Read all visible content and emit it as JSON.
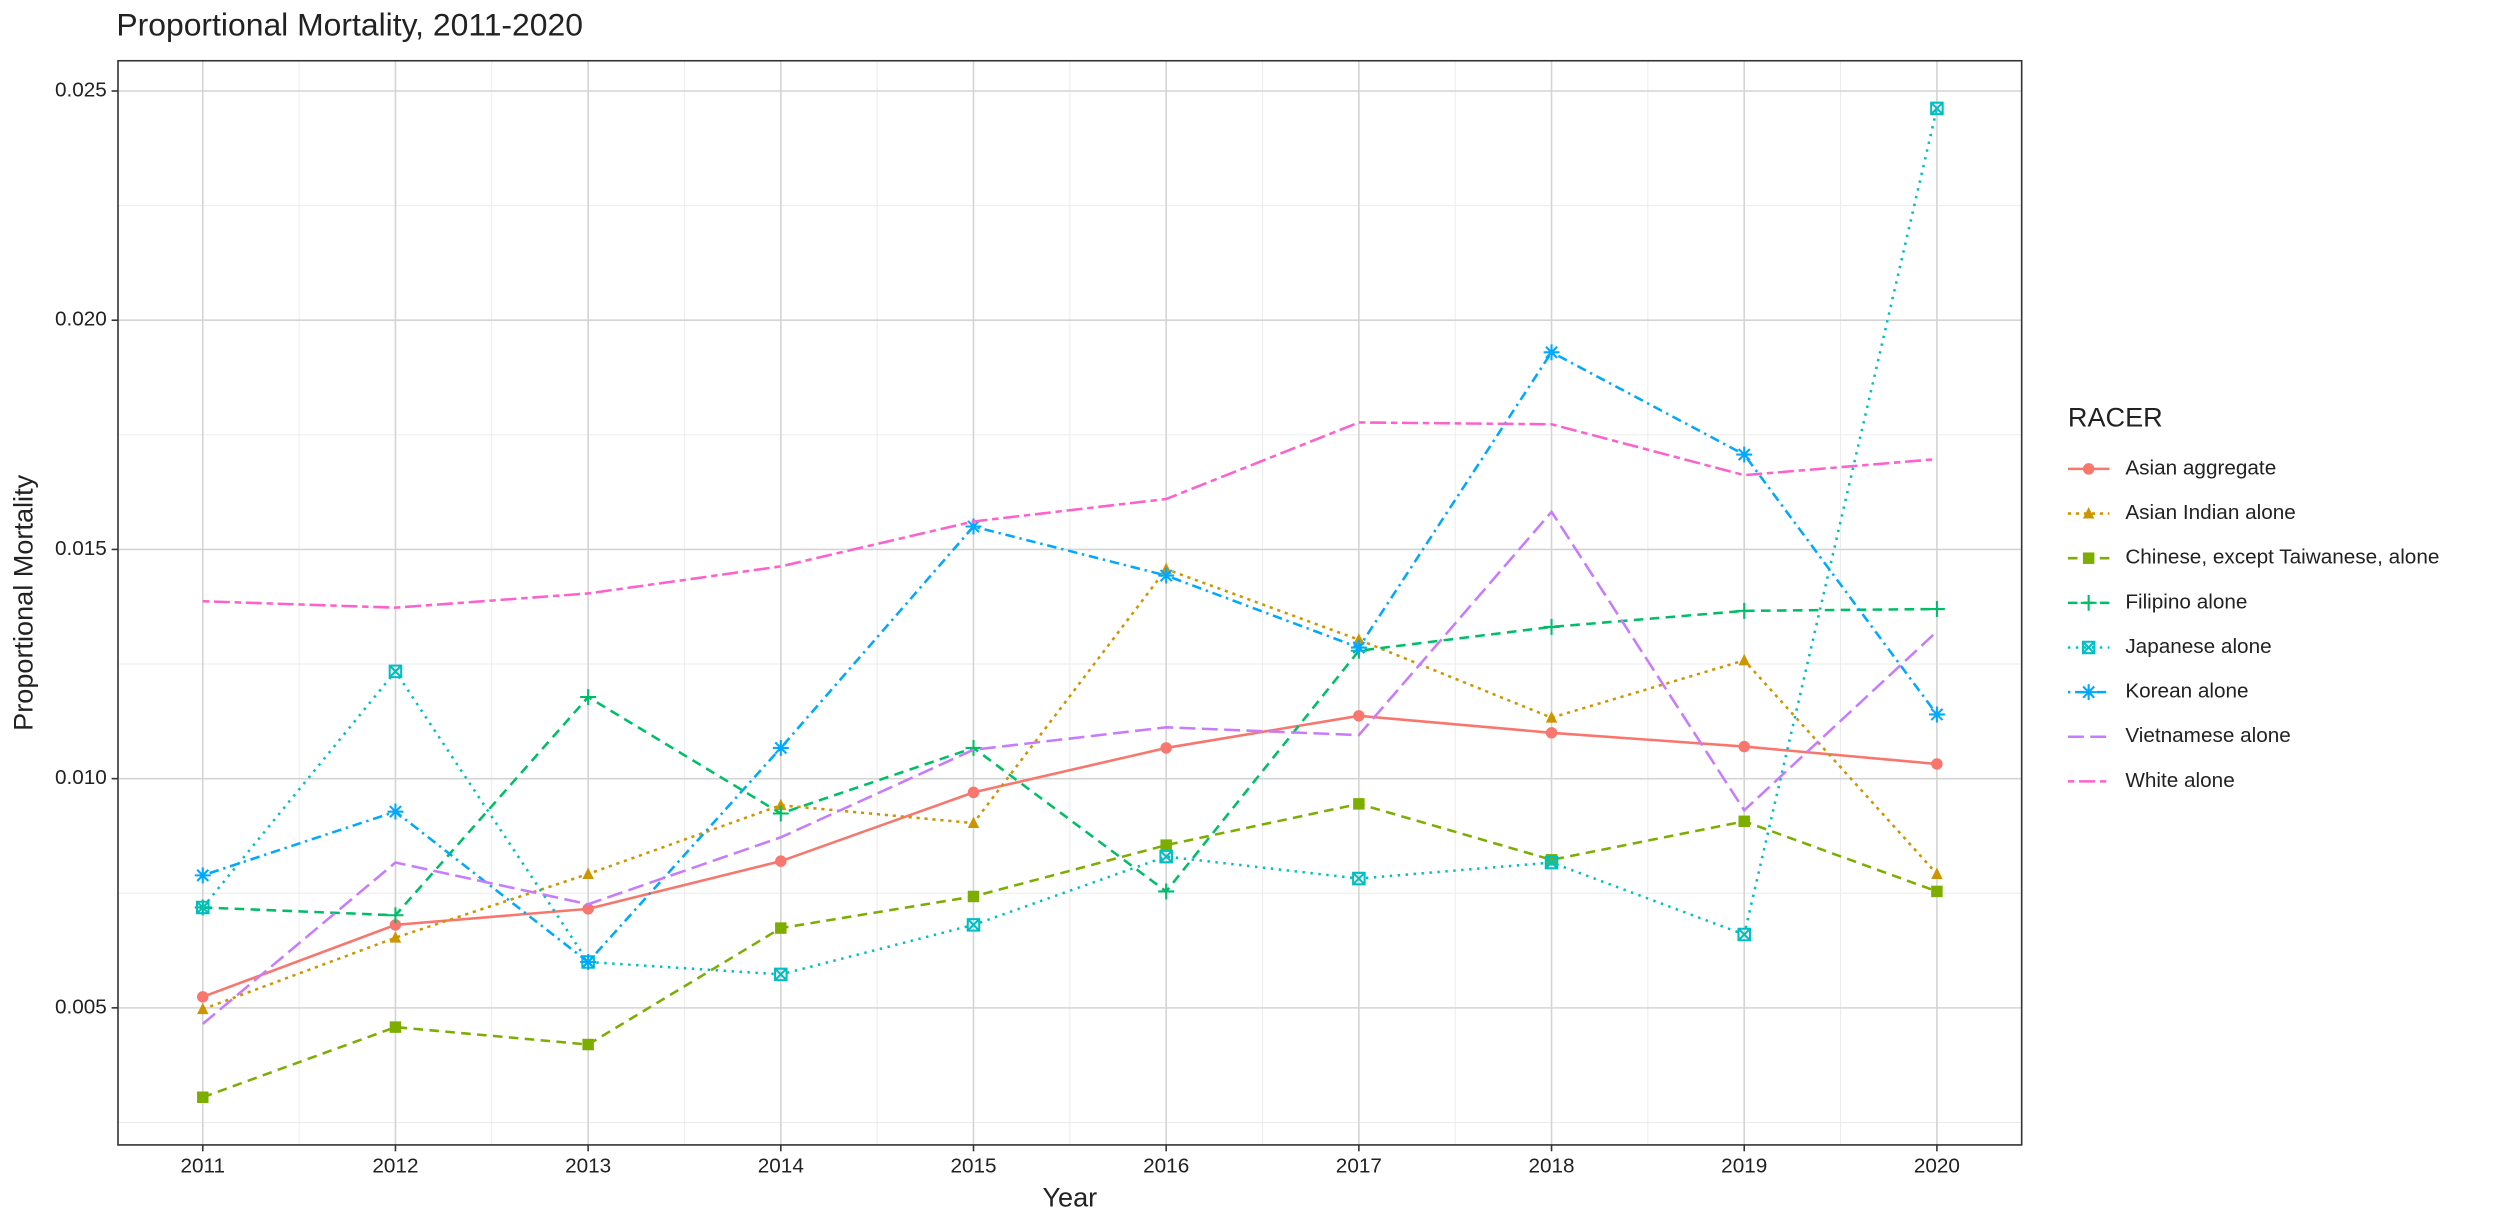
{
  "chart_data": {
    "type": "line",
    "title": "Proportional Mortality, 2011-2020",
    "x_label": "Year",
    "y_label": "Proportional Mortality",
    "legend_title": "RACER",
    "legend": "right",
    "grid": true,
    "x": [
      2011,
      2012,
      2013,
      2014,
      2015,
      2016,
      2017,
      2018,
      2019,
      2020
    ],
    "xlim": [
      2010.56,
      2020.44
    ],
    "xticks": [
      2011,
      2012,
      2013,
      2014,
      2015,
      2016,
      2017,
      2018,
      2019,
      2020
    ],
    "ylim": [
      0.00201,
      0.02566
    ],
    "yticks": [
      0.005,
      {
        "value": 0.01,
        "label": "0.010"
      },
      0.015,
      {
        "value": 0.02,
        "label": "0.020"
      },
      0.025
    ],
    "series": [
      {
        "name": "Asian aggregate",
        "color": "#F8766D",
        "linestyle": "solid",
        "marker": "circle",
        "values": [
          0.00524,
          0.00681,
          0.00716,
          0.0082,
          0.0097,
          0.01067,
          0.01137,
          0.011,
          0.0107,
          0.01032
        ]
      },
      {
        "name": "Asian Indian alone",
        "color": "#CD9600",
        "linestyle": "dotted",
        "marker": "triangle",
        "values": [
          0.00497,
          0.00653,
          0.00792,
          0.00942,
          0.00903,
          0.01457,
          0.01303,
          0.01133,
          0.01258,
          0.00792
        ]
      },
      {
        "name": "Chinese, except Taiwanese, alone",
        "color": "#7CAE00",
        "linestyle": "dashed",
        "marker": "square",
        "values": [
          0.00305,
          0.00458,
          0.0042,
          0.00674,
          0.00743,
          0.00855,
          0.00945,
          0.00823,
          0.00907,
          0.00754
        ]
      },
      {
        "name": "Filipino alone",
        "color": "#00BE67",
        "linestyle": "dashed",
        "marker": "plus",
        "values": [
          0.00719,
          0.00702,
          0.01178,
          0.00924,
          0.01067,
          0.00754,
          0.01279,
          0.01331,
          0.01366,
          0.0137
        ]
      },
      {
        "name": "Japanese alone",
        "color": "#00BFC4",
        "linestyle": "fine-dotted",
        "marker": "square-cross",
        "values": [
          0.00719,
          0.01234,
          0.006,
          0.00573,
          0.00681,
          0.0083,
          0.00782,
          0.00817,
          0.0066,
          0.02462
        ]
      },
      {
        "name": "Korean alone",
        "color": "#00A9FF",
        "linestyle": "dotdash",
        "marker": "asterisk",
        "values": [
          0.00789,
          0.00928,
          0.006,
          0.01067,
          0.0155,
          0.01443,
          0.01286,
          0.0193,
          0.01707,
          0.0114
        ]
      },
      {
        "name": "Vietnamese alone",
        "color": "#C77CFF",
        "linestyle": "longdash",
        "values": [
          0.00465,
          0.00817,
          0.00726,
          0.00872,
          0.01063,
          0.01112,
          0.01095,
          0.01582,
          0.00931,
          0.01321
        ]
      },
      {
        "name": "White alone",
        "color": "#FF61CC",
        "linestyle": "twodash",
        "values": [
          0.01387,
          0.01373,
          0.01404,
          0.01463,
          0.01561,
          0.0161,
          0.01777,
          0.01773,
          0.01662,
          0.01697
        ]
      }
    ]
  }
}
